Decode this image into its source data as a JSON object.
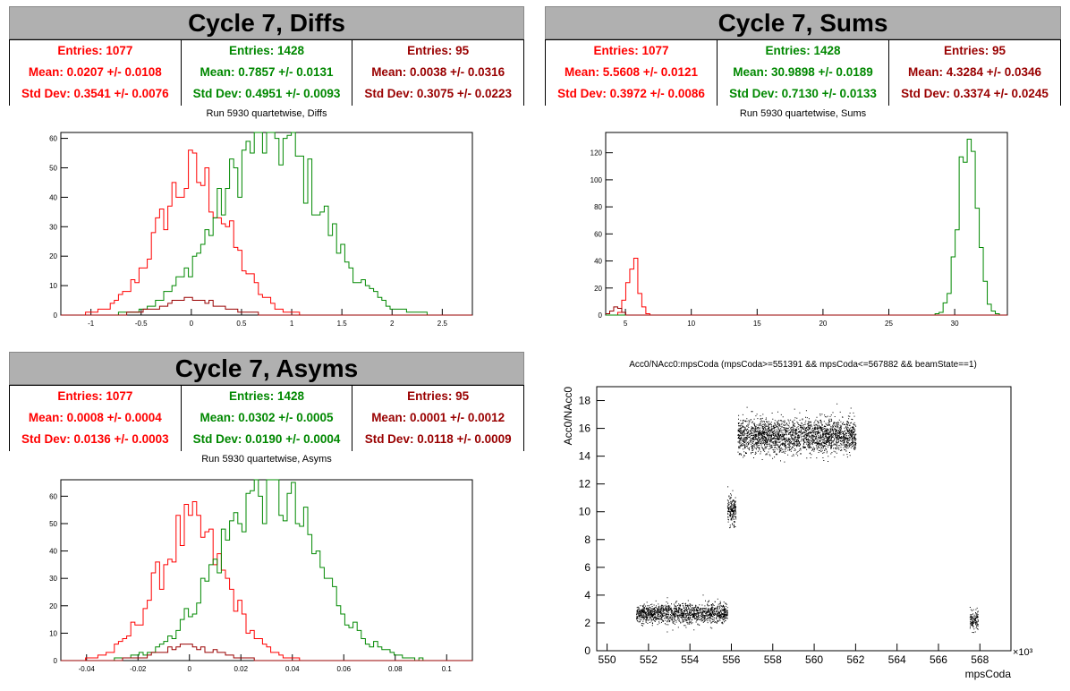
{
  "colors": {
    "red": "#ff0000",
    "green": "#008800",
    "darkred": "#990000",
    "header": "#b0b0b0"
  },
  "panels": {
    "diffs": {
      "title": "Cycle 7, Diffs",
      "subtitle": "Run 5930 quartetwise, Diffs",
      "stats": [
        {
          "color": "red",
          "entries": "Entries: 1077",
          "mean": "Mean: 0.0207 +/- 0.0108",
          "std": "Std Dev: 0.3541 +/- 0.0076"
        },
        {
          "color": "green",
          "entries": "Entries: 1428",
          "mean": "Mean: 0.7857 +/- 0.0131",
          "std": "Std Dev: 0.4951 +/- 0.0093"
        },
        {
          "color": "darkred",
          "entries": "Entries: 95",
          "mean": "Mean: 0.0038 +/- 0.0316",
          "std": "Std Dev: 0.3075 +/- 0.0223"
        }
      ]
    },
    "sums": {
      "title": "Cycle 7, Sums",
      "subtitle": "Run 5930 quartetwise, Sums",
      "stats": [
        {
          "color": "red",
          "entries": "Entries: 1077",
          "mean": "Mean: 5.5608 +/- 0.0121",
          "std": "Std Dev: 0.3972 +/- 0.0086"
        },
        {
          "color": "green",
          "entries": "Entries: 1428",
          "mean": "Mean: 30.9898 +/- 0.0189",
          "std": "Std Dev: 0.7130 +/- 0.0133"
        },
        {
          "color": "darkred",
          "entries": "Entries: 95",
          "mean": "Mean: 4.3284 +/- 0.0346",
          "std": "Std Dev: 0.3374 +/- 0.0245"
        }
      ]
    },
    "asyms": {
      "title": "Cycle 7, Asyms",
      "subtitle": "Run 5930 quartetwise, Asyms",
      "stats": [
        {
          "color": "red",
          "entries": "Entries: 1077",
          "mean": "Mean: 0.0008 +/- 0.0004",
          "std": "Std Dev: 0.0136 +/- 0.0003"
        },
        {
          "color": "green",
          "entries": "Entries: 1428",
          "mean": "Mean: 0.0302 +/- 0.0005",
          "std": "Std Dev: 0.0190 +/- 0.0004"
        },
        {
          "color": "darkred",
          "entries": "Entries: 95",
          "mean": "Mean: 0.0001 +/- 0.0012",
          "std": "Std Dev: 0.0118 +/- 0.0009"
        }
      ]
    }
  },
  "chart_data": [
    {
      "id": "diffs",
      "type": "histogram",
      "xlim": [
        -1.3,
        2.8
      ],
      "ylim": [
        0,
        62
      ],
      "xticks": [
        -1,
        -0.5,
        0,
        0.5,
        1,
        1.5,
        2,
        2.5
      ],
      "xtick_labels": [
        "-1",
        "-0.5",
        "0",
        "0.5",
        "1",
        "1.5",
        "2",
        "2.5"
      ],
      "yticks": [
        0,
        10,
        20,
        30,
        40,
        50,
        60
      ],
      "series": [
        {
          "color": "red",
          "entries": 1077,
          "mean": 0.0207,
          "std": 0.3541,
          "peak": 47
        },
        {
          "color": "green",
          "entries": 1428,
          "mean": 0.7857,
          "std": 0.4951,
          "peak": 61
        },
        {
          "color": "darkred",
          "entries": 95,
          "mean": 0.0038,
          "std": 0.3075,
          "peak": 5
        }
      ]
    },
    {
      "id": "sums",
      "type": "histogram",
      "xlim": [
        3.5,
        34
      ],
      "ylim": [
        0,
        135
      ],
      "xticks": [
        5,
        10,
        15,
        20,
        25,
        30
      ],
      "xtick_labels": [
        "5",
        "10",
        "15",
        "20",
        "25",
        "30"
      ],
      "yticks": [
        0,
        20,
        40,
        60,
        80,
        100,
        120
      ],
      "series": [
        {
          "color": "red",
          "entries": 1077,
          "mean": 5.5608,
          "std": 0.3972,
          "peak": 42
        },
        {
          "color": "green",
          "entries": 1428,
          "mean": 30.9898,
          "std": 0.713,
          "peak": 130
        },
        {
          "color": "darkred",
          "entries": 95,
          "mean": 4.3284,
          "std": 0.3374,
          "peak": 6
        }
      ]
    },
    {
      "id": "asyms",
      "type": "histogram",
      "xlim": [
        -0.05,
        0.11
      ],
      "ylim": [
        0,
        66
      ],
      "xticks": [
        -0.04,
        -0.02,
        0,
        0.02,
        0.04,
        0.06,
        0.08,
        0.1
      ],
      "xtick_labels": [
        "-0.04",
        "-0.02",
        "0",
        "0.02",
        "0.04",
        "0.06",
        "0.08",
        "0.1"
      ],
      "yticks": [
        0,
        10,
        20,
        30,
        40,
        50,
        60
      ],
      "series": [
        {
          "color": "red",
          "entries": 1077,
          "mean": 0.0008,
          "std": 0.0136,
          "peak": 48
        },
        {
          "color": "green",
          "entries": 1428,
          "mean": 0.0302,
          "std": 0.019,
          "peak": 63
        },
        {
          "color": "darkred",
          "entries": 95,
          "mean": 0.0001,
          "std": 0.0118,
          "peak": 5
        }
      ]
    },
    {
      "id": "scatter",
      "type": "scatter",
      "title": "Acc0/NAcc0:mpsCoda (mpsCoda>=551391 && mpsCoda<=567882 && beamState==1)",
      "xlabel": "mpsCoda",
      "ylabel": "Acc0/NAcc0",
      "x_multiplier": "×10³",
      "xlim": [
        549.5,
        569.5
      ],
      "ylim": [
        0,
        19
      ],
      "xticks": [
        550,
        552,
        554,
        556,
        558,
        560,
        562,
        564,
        566,
        568
      ],
      "xtick_labels": [
        "550",
        "552",
        "554",
        "556",
        "558",
        "560",
        "562",
        "564",
        "566",
        "568"
      ],
      "yticks": [
        0,
        2,
        4,
        6,
        8,
        10,
        12,
        14,
        16,
        18
      ],
      "ytick_labels": [
        "0",
        "2",
        "4",
        "6",
        "8",
        "10",
        "12",
        "14",
        "16",
        "18"
      ],
      "clusters": [
        {
          "x": [
            551.4,
            555.8
          ],
          "y_mean": 2.7,
          "y_spread": 0.35,
          "n": 1400
        },
        {
          "x": [
            555.8,
            556.2
          ],
          "y_mean": 10.2,
          "y_spread": 0.5,
          "n": 180
        },
        {
          "x": [
            556.3,
            562.0
          ],
          "y_mean": 15.5,
          "y_spread": 0.6,
          "n": 2400
        },
        {
          "x": [
            567.5,
            567.9
          ],
          "y_mean": 2.2,
          "y_spread": 0.35,
          "n": 120
        }
      ]
    }
  ]
}
